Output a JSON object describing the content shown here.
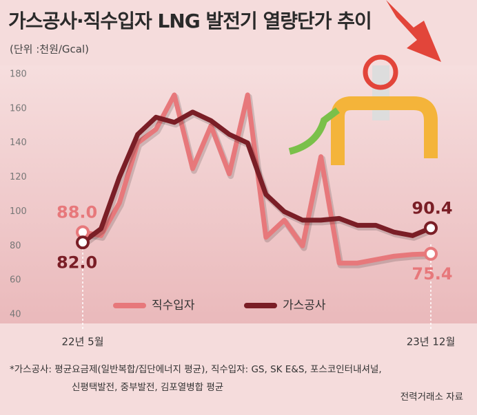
{
  "chart_data": {
    "type": "line",
    "title": "가스공사·직수입자 LNG 발전기 열량단가 추이",
    "subtitle": "(단위 :천원/Gcal)",
    "categories": [
      "22년 5월",
      null,
      null,
      null,
      null,
      null,
      null,
      null,
      null,
      null,
      null,
      null,
      null,
      null,
      null,
      null,
      null,
      null,
      null,
      "23년 12월"
    ],
    "series": [
      {
        "name": "직수입자",
        "color": "#e7787b",
        "values": [
          88.0,
          86,
          105,
          140,
          148,
          168,
          125,
          150,
          122,
          168,
          85,
          95,
          80,
          132,
          70,
          70,
          72,
          74,
          75,
          75.4
        ],
        "value_labels": [
          "88.0",
          null,
          null,
          null,
          null,
          null,
          null,
          null,
          null,
          null,
          null,
          null,
          null,
          null,
          null,
          null,
          null,
          null,
          null,
          "75.4"
        ]
      },
      {
        "name": "가스공사",
        "color": "#7a1e26",
        "values": [
          82.0,
          90,
          120,
          145,
          155,
          152,
          158,
          153,
          145,
          140,
          110,
          100,
          95,
          95,
          96,
          92,
          92,
          88,
          86,
          90.4
        ],
        "value_labels": [
          "82.0",
          null,
          null,
          null,
          null,
          null,
          null,
          null,
          null,
          null,
          null,
          null,
          null,
          null,
          null,
          null,
          null,
          null,
          null,
          "90.4"
        ]
      }
    ],
    "ylim": [
      40,
      180
    ],
    "yticks": [
      40,
      60,
      80,
      100,
      120,
      140,
      160,
      180
    ],
    "notes": [
      "*가스공사: 평균요금제(일반복합/집단에너지 평균), 직수입자: GS, SK E&S, 포스코인터내셔널,",
      "신평택발전, 중부발전, 김포열병합 평균"
    ],
    "source": "전력거래소 자료"
  }
}
